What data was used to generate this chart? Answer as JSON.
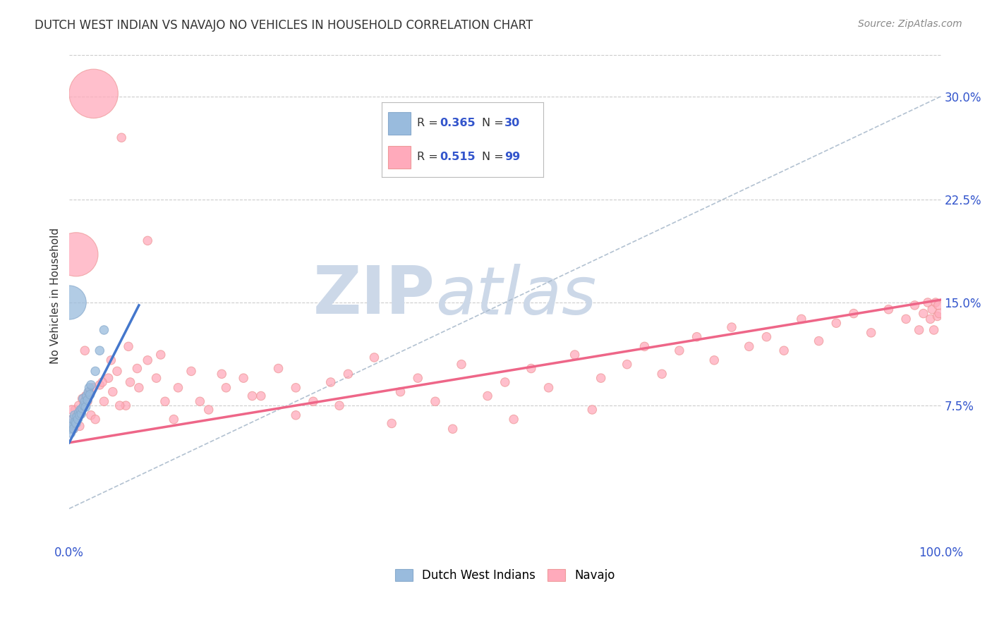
{
  "title": "DUTCH WEST INDIAN VS NAVAJO NO VEHICLES IN HOUSEHOLD CORRELATION CHART",
  "source": "Source: ZipAtlas.com",
  "ylabel": "No Vehicles in Household",
  "xlim": [
    0.0,
    1.0
  ],
  "ylim": [
    -0.025,
    0.335
  ],
  "ytick_vals": [
    0.0,
    0.075,
    0.15,
    0.225,
    0.3
  ],
  "ytick_labels": [
    "",
    "7.5%",
    "15.0%",
    "22.5%",
    "30.0%"
  ],
  "xtick_vals": [
    0.0,
    0.5,
    1.0
  ],
  "xtick_labels": [
    "0.0%",
    "",
    "100.0%"
  ],
  "grid_color": "#cccccc",
  "background_color": "#ffffff",
  "blue_color": "#99bbdd",
  "pink_color": "#ffaabb",
  "blue_edge": "#88aacc",
  "pink_edge": "#ee9999",
  "blue_line_color": "#4477cc",
  "pink_line_color": "#ee6688",
  "diag_color": "#aabbcc",
  "title_color": "#333333",
  "tick_color": "#3355cc",
  "watermark_color": "#ccd8e8",
  "legend_r1": "0.365",
  "legend_n1": "30",
  "legend_r2": "0.515",
  "legend_n2": "99",
  "dwi_x": [
    0.0005,
    0.001,
    0.002,
    0.003,
    0.004,
    0.005,
    0.006,
    0.007,
    0.008,
    0.009,
    0.01,
    0.011,
    0.012,
    0.013,
    0.014,
    0.015,
    0.016,
    0.017,
    0.018,
    0.019,
    0.02,
    0.021,
    0.022,
    0.023,
    0.024,
    0.025,
    0.03,
    0.035,
    0.04,
    0.0001
  ],
  "dwi_y": [
    0.06,
    0.058,
    0.055,
    0.062,
    0.065,
    0.058,
    0.068,
    0.063,
    0.062,
    0.067,
    0.065,
    0.07,
    0.068,
    0.072,
    0.069,
    0.073,
    0.08,
    0.075,
    0.078,
    0.074,
    0.082,
    0.079,
    0.085,
    0.088,
    0.083,
    0.09,
    0.1,
    0.115,
    0.13,
    0.15
  ],
  "dwi_sizes": [
    80,
    80,
    80,
    80,
    80,
    80,
    80,
    80,
    80,
    80,
    80,
    80,
    80,
    80,
    80,
    80,
    80,
    80,
    80,
    80,
    80,
    80,
    80,
    80,
    80,
    80,
    80,
    80,
    80,
    1200
  ],
  "nav_x": [
    0.001,
    0.003,
    0.005,
    0.007,
    0.009,
    0.011,
    0.013,
    0.015,
    0.017,
    0.019,
    0.021,
    0.023,
    0.025,
    0.027,
    0.03,
    0.035,
    0.04,
    0.045,
    0.05,
    0.055,
    0.06,
    0.065,
    0.07,
    0.08,
    0.09,
    0.1,
    0.11,
    0.12,
    0.14,
    0.16,
    0.18,
    0.2,
    0.22,
    0.24,
    0.26,
    0.28,
    0.3,
    0.32,
    0.35,
    0.38,
    0.4,
    0.42,
    0.45,
    0.48,
    0.5,
    0.53,
    0.55,
    0.58,
    0.61,
    0.64,
    0.66,
    0.68,
    0.7,
    0.72,
    0.74,
    0.76,
    0.78,
    0.8,
    0.82,
    0.84,
    0.86,
    0.88,
    0.9,
    0.92,
    0.94,
    0.96,
    0.97,
    0.975,
    0.98,
    0.985,
    0.988,
    0.99,
    0.992,
    0.994,
    0.996,
    0.997,
    0.998,
    0.003,
    0.008,
    0.012,
    0.018,
    0.028,
    0.038,
    0.048,
    0.058,
    0.068,
    0.078,
    0.09,
    0.105,
    0.125,
    0.15,
    0.175,
    0.21,
    0.26,
    0.31,
    0.37,
    0.44,
    0.51,
    0.6
  ],
  "nav_y": [
    0.06,
    0.065,
    0.058,
    0.072,
    0.068,
    0.075,
    0.07,
    0.08,
    0.076,
    0.082,
    0.078,
    0.085,
    0.068,
    0.088,
    0.065,
    0.09,
    0.078,
    0.095,
    0.085,
    0.1,
    0.27,
    0.075,
    0.092,
    0.088,
    0.108,
    0.095,
    0.078,
    0.065,
    0.1,
    0.072,
    0.088,
    0.095,
    0.082,
    0.102,
    0.088,
    0.078,
    0.092,
    0.098,
    0.11,
    0.085,
    0.095,
    0.078,
    0.105,
    0.082,
    0.092,
    0.102,
    0.088,
    0.112,
    0.095,
    0.105,
    0.118,
    0.098,
    0.115,
    0.125,
    0.108,
    0.132,
    0.118,
    0.125,
    0.115,
    0.138,
    0.122,
    0.135,
    0.142,
    0.128,
    0.145,
    0.138,
    0.148,
    0.13,
    0.142,
    0.15,
    0.138,
    0.145,
    0.13,
    0.15,
    0.14,
    0.148,
    0.142,
    0.072,
    0.185,
    0.06,
    0.115,
    0.302,
    0.092,
    0.108,
    0.075,
    0.118,
    0.102,
    0.195,
    0.112,
    0.088,
    0.078,
    0.098,
    0.082,
    0.068,
    0.075,
    0.062,
    0.058,
    0.065,
    0.072
  ],
  "nav_sizes": [
    80,
    80,
    80,
    80,
    80,
    80,
    80,
    80,
    80,
    80,
    80,
    80,
    80,
    80,
    80,
    80,
    80,
    80,
    80,
    80,
    80,
    80,
    80,
    80,
    80,
    80,
    80,
    80,
    80,
    80,
    80,
    80,
    80,
    80,
    80,
    80,
    80,
    80,
    80,
    80,
    80,
    80,
    80,
    80,
    80,
    80,
    80,
    80,
    80,
    80,
    80,
    80,
    80,
    80,
    80,
    80,
    80,
    80,
    80,
    80,
    80,
    80,
    80,
    80,
    80,
    80,
    80,
    80,
    80,
    80,
    80,
    80,
    80,
    80,
    80,
    80,
    80,
    80,
    2000,
    80,
    80,
    2500,
    80,
    80,
    80,
    80,
    80,
    80,
    80,
    80,
    80,
    80,
    80,
    80,
    80,
    80,
    80,
    80,
    80
  ],
  "blue_line_x": [
    0.0,
    0.08
  ],
  "blue_line_y": [
    0.048,
    0.148
  ],
  "pink_line_x": [
    0.0,
    1.0
  ],
  "pink_line_y": [
    0.048,
    0.152
  ],
  "diag_line_x": [
    0.0,
    1.0
  ],
  "diag_line_y": [
    0.0,
    0.3
  ]
}
